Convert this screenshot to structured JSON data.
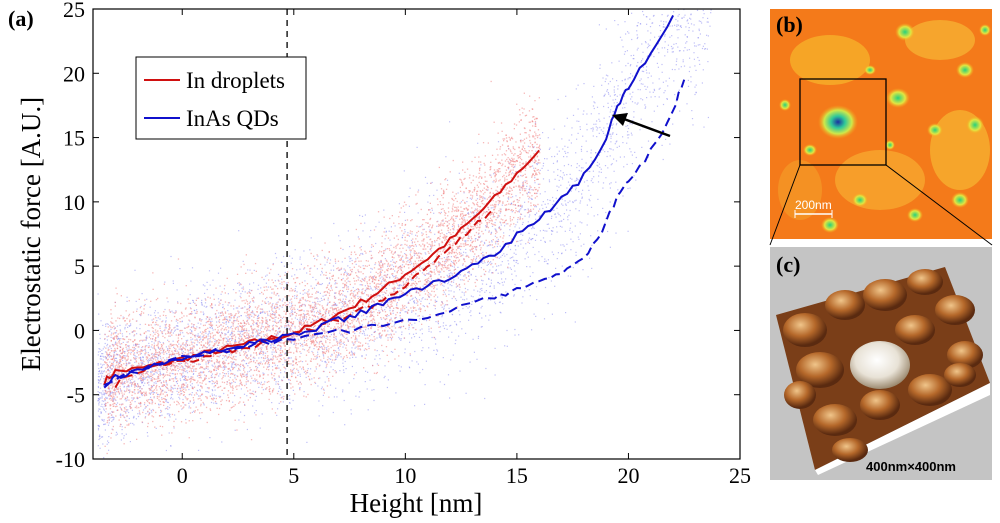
{
  "panel_labels": {
    "a": "(a)",
    "b": "(b)",
    "c": "(c)"
  },
  "chart_data": {
    "type": "scatter",
    "title": "",
    "xlabel": "Height [nm]",
    "ylabel": "Electrostatic force [A.U.]",
    "xlim": [
      -4,
      25
    ],
    "ylim": [
      -10,
      25
    ],
    "xticks": [
      0,
      5,
      10,
      15,
      20,
      25
    ],
    "yticks": [
      -10,
      -5,
      0,
      5,
      10,
      15,
      20,
      25
    ],
    "vline_x": 4.7,
    "legend": {
      "position": "top-left",
      "entries": [
        {
          "label": "In droplets",
          "color": "#d01010"
        },
        {
          "label": "InAs QDs",
          "color": "#1010cc"
        }
      ]
    },
    "series": [
      {
        "name": "In droplets",
        "style": "solid",
        "color": "#d01010",
        "x": [
          -3.5,
          -3,
          -2,
          -1,
          0,
          1,
          2,
          3,
          4,
          5,
          6,
          7,
          8,
          9,
          10,
          11,
          12,
          13,
          14,
          15,
          16
        ],
        "y": [
          -4.0,
          -3.2,
          -3.0,
          -2.6,
          -2.2,
          -1.8,
          -1.4,
          -1.0,
          -0.6,
          -0.2,
          0.5,
          1.3,
          2.2,
          3.2,
          4.4,
          5.6,
          7.0,
          8.6,
          10.3,
          12.2,
          14.0
        ]
      },
      {
        "name": "In droplets",
        "style": "dashed",
        "color": "#d01010",
        "x": [
          -3.0,
          -2,
          -1,
          0,
          1,
          2,
          3,
          4,
          5,
          6,
          7,
          8,
          9,
          10,
          11,
          12,
          13,
          14
        ],
        "y": [
          -4.2,
          -3.2,
          -2.8,
          -2.4,
          -2.0,
          -1.6,
          -1.2,
          -0.8,
          -0.4,
          0.2,
          0.8,
          1.6,
          2.4,
          3.6,
          5.0,
          6.5,
          8.0,
          9.5
        ]
      },
      {
        "name": "InAs QDs",
        "style": "solid",
        "color": "#1010cc",
        "x": [
          -3.5,
          -3,
          -2,
          -1,
          0,
          1,
          2,
          3,
          4,
          5,
          6,
          7,
          8,
          9,
          10,
          11,
          12,
          13,
          14,
          15,
          16,
          17,
          18,
          19,
          19.5,
          20,
          21,
          22
        ],
        "y": [
          -4.2,
          -3.6,
          -3.2,
          -2.6,
          -2.2,
          -1.8,
          -1.4,
          -1.0,
          -0.7,
          -0.3,
          0.2,
          0.8,
          1.4,
          2.0,
          2.8,
          3.5,
          4.2,
          5.2,
          6.0,
          7.4,
          8.8,
          10.2,
          12.0,
          15.0,
          17.5,
          19.0,
          21.5,
          24.5
        ]
      },
      {
        "name": "InAs QDs",
        "style": "dashed",
        "color": "#1010cc",
        "x": [
          -3.5,
          -2,
          0,
          2,
          4,
          6,
          8,
          10,
          12,
          14,
          15,
          16,
          17,
          18,
          18.8,
          19.5,
          20,
          21,
          22,
          22.5
        ],
        "y": [
          -4.0,
          -3.2,
          -2.2,
          -1.5,
          -0.9,
          -0.4,
          0.2,
          0.8,
          1.6,
          2.6,
          3.2,
          4.0,
          4.5,
          5.5,
          7.5,
          10.5,
          11.5,
          14.0,
          17.0,
          19.5
        ]
      }
    ],
    "scatter_clouds": [
      {
        "name": "In droplets scatter",
        "color": "#f28a8a"
      },
      {
        "name": "InAs QDs scatter",
        "color": "#8a8af0"
      }
    ]
  },
  "panel_b": {
    "scale_label": "200nm"
  },
  "panel_c": {
    "size_label": "400nm×400nm"
  }
}
